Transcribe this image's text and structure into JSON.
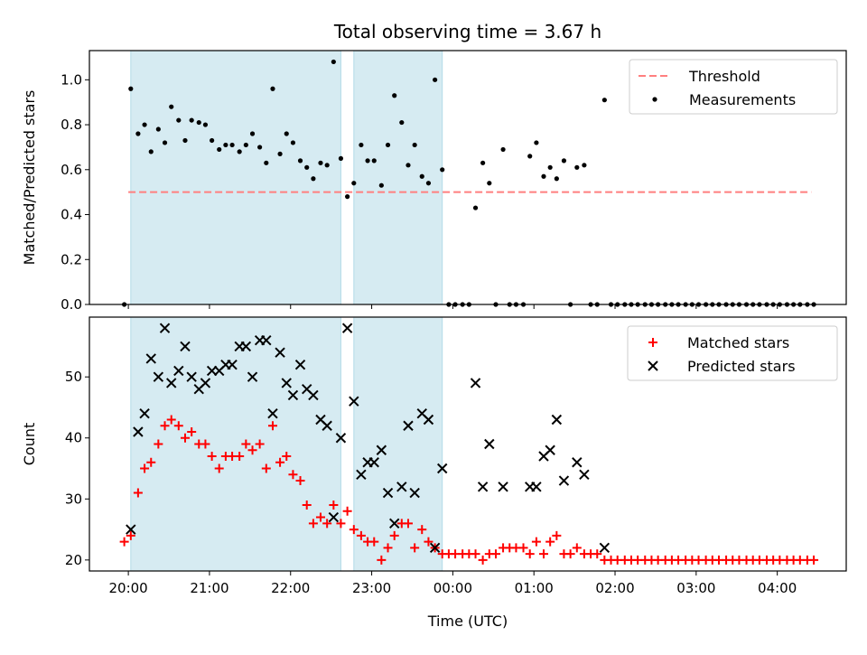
{
  "chart_data": {
    "type": "scatter",
    "title": "Total observing time = 3.67 h",
    "xlabel": "Time (UTC)",
    "x_unit": "hours UTC, continuing past midnight",
    "xlim": [
      19.52,
      28.85
    ],
    "xticks": [
      {
        "value": 20,
        "label": "20:00"
      },
      {
        "value": 21,
        "label": "21:00"
      },
      {
        "value": 22,
        "label": "22:00"
      },
      {
        "value": 23,
        "label": "23:00"
      },
      {
        "value": 24,
        "label": "00:00"
      },
      {
        "value": 25,
        "label": "01:00"
      },
      {
        "value": 26,
        "label": "02:00"
      },
      {
        "value": 27,
        "label": "03:00"
      },
      {
        "value": 28,
        "label": "04:00"
      }
    ],
    "shaded_intervals": [
      [
        20.03,
        22.62
      ],
      [
        22.78,
        23.87
      ]
    ],
    "shade_color": "#add8e6",
    "panels": [
      {
        "id": "ratio",
        "ylabel": "Matched/Predicted stars",
        "ylim": [
          0,
          1.13
        ],
        "yticks": [
          {
            "value": 0,
            "label": "0.0"
          },
          {
            "value": 0.2,
            "label": "0.2"
          },
          {
            "value": 0.4,
            "label": "0.4"
          },
          {
            "value": 0.6,
            "label": "0.6"
          },
          {
            "value": 0.8,
            "label": "0.8"
          },
          {
            "value": 1.0,
            "label": "1.0"
          }
        ],
        "threshold": {
          "name": "Threshold",
          "value": 0.5,
          "x_range": [
            20.0,
            28.42
          ],
          "color": "#ff7f7f"
        },
        "series": [
          {
            "name": "Measurements",
            "marker": "dot",
            "color": "#000000",
            "x": [
              19.95,
              20.03,
              20.12,
              20.2,
              20.28,
              20.37,
              20.45,
              20.53,
              20.62,
              20.7,
              20.78,
              20.87,
              20.95,
              21.03,
              21.12,
              21.2,
              21.28,
              21.37,
              21.45,
              21.53,
              21.62,
              21.7,
              21.78,
              21.87,
              21.95,
              22.03,
              22.12,
              22.2,
              22.28,
              22.37,
              22.45,
              22.53,
              22.62,
              22.7,
              22.78,
              22.87,
              22.95,
              23.03,
              23.12,
              23.2,
              23.28,
              23.37,
              23.45,
              23.53,
              23.62,
              23.7,
              23.78,
              23.87,
              23.95,
              24.03,
              24.12,
              24.2,
              24.28,
              24.37,
              24.45,
              24.53,
              24.62,
              24.7,
              24.78,
              24.87,
              24.95,
              25.03,
              25.12,
              25.2,
              25.28,
              25.37,
              25.45,
              25.53,
              25.62,
              25.7,
              25.78,
              25.87,
              25.95,
              26.03,
              26.12,
              26.2,
              26.28,
              26.37,
              26.45,
              26.53,
              26.62,
              26.7,
              26.78,
              26.87,
              26.95,
              27.03,
              27.12,
              27.2,
              27.28,
              27.37,
              27.45,
              27.53,
              27.62,
              27.7,
              27.78,
              27.87,
              27.95,
              28.03,
              28.12,
              28.2,
              28.28,
              28.37,
              28.45
            ],
            "y": [
              0.0,
              0.96,
              0.76,
              0.8,
              0.68,
              0.78,
              0.72,
              0.88,
              0.82,
              0.73,
              0.82,
              0.81,
              0.8,
              0.73,
              0.69,
              0.71,
              0.71,
              0.68,
              0.71,
              0.76,
              0.7,
              0.63,
              0.96,
              0.67,
              0.76,
              0.72,
              0.64,
              0.61,
              0.56,
              0.63,
              0.62,
              1.08,
              0.65,
              0.48,
              0.54,
              0.71,
              0.64,
              0.64,
              0.53,
              0.71,
              0.93,
              0.81,
              0.62,
              0.71,
              0.57,
              0.54,
              1.0,
              0.6,
              0.0,
              0.0,
              0.0,
              0.0,
              0.43,
              0.63,
              0.54,
              0.0,
              0.69,
              0.0,
              0.0,
              0.0,
              0.66,
              0.72,
              0.57,
              0.61,
              0.56,
              0.64,
              0.0,
              0.61,
              0.62,
              0.0,
              0.0,
              0.91,
              0.0,
              0.0,
              0.0,
              0.0,
              0.0,
              0.0,
              0.0,
              0.0,
              0.0,
              0.0,
              0.0,
              0.0,
              0.0,
              0.0,
              0.0,
              0.0,
              0.0,
              0.0,
              0.0,
              0.0,
              0.0,
              0.0,
              0.0,
              0.0,
              0.0,
              0.0,
              0.0,
              0.0,
              0.0,
              0.0,
              0.0
            ]
          }
        ],
        "legend": {
          "placement": "top-right",
          "entries": [
            "Threshold",
            "Measurements"
          ]
        }
      },
      {
        "id": "count",
        "ylabel": "Count",
        "ylim": [
          18.2,
          59.8
        ],
        "yticks": [
          {
            "value": 20,
            "label": "20"
          },
          {
            "value": 30,
            "label": "30"
          },
          {
            "value": 40,
            "label": "40"
          },
          {
            "value": 50,
            "label": "50"
          }
        ],
        "series": [
          {
            "name": "Matched stars",
            "marker": "plus",
            "color": "#ff0000",
            "x": [
              19.95,
              20.03,
              20.12,
              20.2,
              20.28,
              20.37,
              20.45,
              20.53,
              20.62,
              20.7,
              20.78,
              20.87,
              20.95,
              21.03,
              21.12,
              21.2,
              21.28,
              21.37,
              21.45,
              21.53,
              21.62,
              21.7,
              21.78,
              21.87,
              21.95,
              22.03,
              22.12,
              22.2,
              22.28,
              22.37,
              22.45,
              22.53,
              22.62,
              22.7,
              22.78,
              22.87,
              22.95,
              23.03,
              23.12,
              23.2,
              23.28,
              23.37,
              23.45,
              23.53,
              23.62,
              23.7,
              23.78,
              23.87,
              23.95,
              24.03,
              24.12,
              24.2,
              24.28,
              24.37,
              24.45,
              24.53,
              24.62,
              24.7,
              24.78,
              24.87,
              24.95,
              25.03,
              25.12,
              25.2,
              25.28,
              25.37,
              25.45,
              25.53,
              25.62,
              25.7,
              25.78,
              25.87,
              25.95,
              26.03,
              26.12,
              26.2,
              26.28,
              26.37,
              26.45,
              26.53,
              26.62,
              26.7,
              26.78,
              26.87,
              26.95,
              27.03,
              27.12,
              27.2,
              27.28,
              27.37,
              27.45,
              27.53,
              27.62,
              27.7,
              27.78,
              27.87,
              27.95,
              28.03,
              28.12,
              28.2,
              28.28,
              28.37,
              28.45
            ],
            "y": [
              23,
              24,
              31,
              35,
              36,
              39,
              42,
              43,
              42,
              40,
              41,
              39,
              39,
              37,
              35,
              37,
              37,
              37,
              39,
              38,
              39,
              35,
              42,
              36,
              37,
              34,
              33,
              29,
              26,
              27,
              26,
              29,
              26,
              28,
              25,
              24,
              23,
              23,
              20,
              22,
              24,
              26,
              26,
              22,
              25,
              23,
              22,
              21,
              21,
              21,
              21,
              21,
              21,
              20,
              21,
              21,
              22,
              22,
              22,
              22,
              21,
              23,
              21,
              23,
              24,
              21,
              21,
              22,
              21,
              21,
              21,
              20,
              20,
              20,
              20,
              20,
              20,
              20,
              20,
              20,
              20,
              20,
              20,
              20,
              20,
              20,
              20,
              20,
              20,
              20,
              20,
              20,
              20,
              20,
              20,
              20,
              20,
              20,
              20,
              20,
              20,
              20,
              20
            ]
          },
          {
            "name": "Predicted stars",
            "marker": "x",
            "color": "#000000",
            "x": [
              20.03,
              20.12,
              20.2,
              20.28,
              20.37,
              20.45,
              20.53,
              20.62,
              20.7,
              20.78,
              20.87,
              20.95,
              21.03,
              21.12,
              21.2,
              21.28,
              21.37,
              21.45,
              21.53,
              21.62,
              21.7,
              21.78,
              21.87,
              21.95,
              22.03,
              22.12,
              22.2,
              22.28,
              22.37,
              22.45,
              22.53,
              22.62,
              22.7,
              22.78,
              22.87,
              22.95,
              23.03,
              23.12,
              23.2,
              23.28,
              23.37,
              23.45,
              23.53,
              23.62,
              23.7,
              23.78,
              23.87,
              24.28,
              24.37,
              24.45,
              24.62,
              24.95,
              25.03,
              25.12,
              25.2,
              25.28,
              25.37,
              25.53,
              25.62,
              25.87
            ],
            "y": [
              25,
              41,
              44,
              53,
              50,
              58,
              49,
              51,
              55,
              50,
              48,
              49,
              51,
              51,
              52,
              52,
              55,
              55,
              50,
              56,
              56,
              44,
              54,
              49,
              47,
              52,
              48,
              47,
              43,
              42,
              27,
              40,
              58,
              46,
              34,
              36,
              36,
              38,
              31,
              26,
              32,
              42,
              31,
              44,
              43,
              22,
              35,
              49,
              32,
              39,
              32,
              32,
              32,
              37,
              38,
              43,
              33,
              36,
              34,
              22
            ]
          }
        ],
        "legend": {
          "placement": "top-right",
          "entries": [
            "Matched stars",
            "Predicted stars"
          ]
        }
      }
    ]
  }
}
